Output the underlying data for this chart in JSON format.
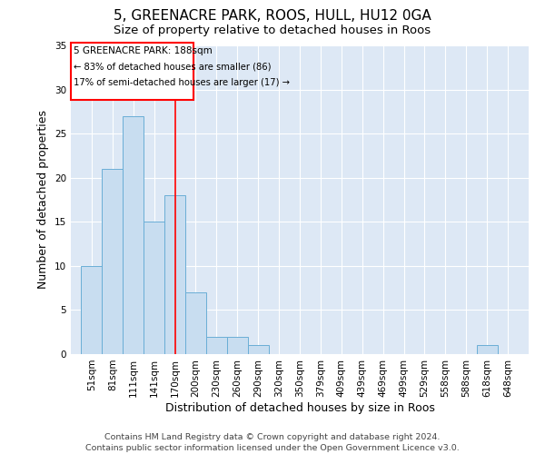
{
  "title": "5, GREENACRE PARK, ROOS, HULL, HU12 0GA",
  "subtitle": "Size of property relative to detached houses in Roos",
  "xlabel": "Distribution of detached houses by size in Roos",
  "ylabel": "Number of detached properties",
  "categories": [
    "51sqm",
    "81sqm",
    "111sqm",
    "141sqm",
    "170sqm",
    "200sqm",
    "230sqm",
    "260sqm",
    "290sqm",
    "320sqm",
    "350sqm",
    "379sqm",
    "409sqm",
    "439sqm",
    "469sqm",
    "499sqm",
    "529sqm",
    "558sqm",
    "588sqm",
    "618sqm",
    "648sqm"
  ],
  "values": [
    10,
    21,
    27,
    15,
    18,
    7,
    2,
    2,
    1,
    0,
    0,
    0,
    0,
    0,
    0,
    0,
    0,
    0,
    0,
    1,
    0
  ],
  "bar_color": "#c8ddf0",
  "bar_edge_color": "#6aaed6",
  "ylim": [
    0,
    35
  ],
  "yticks": [
    0,
    5,
    10,
    15,
    20,
    25,
    30,
    35
  ],
  "annotation_title": "5 GREENACRE PARK: 188sqm",
  "annotation_line1": "← 83% of detached houses are smaller (86)",
  "annotation_line2": "17% of semi-detached houses are larger (17) →",
  "vline_x": 4.5,
  "bg_color": "#dde8f5",
  "footer1": "Contains HM Land Registry data © Crown copyright and database right 2024.",
  "footer2": "Contains public sector information licensed under the Open Government Licence v3.0.",
  "title_fontsize": 11,
  "subtitle_fontsize": 9.5,
  "axis_label_fontsize": 9,
  "tick_fontsize": 7.5,
  "footer_fontsize": 6.8
}
